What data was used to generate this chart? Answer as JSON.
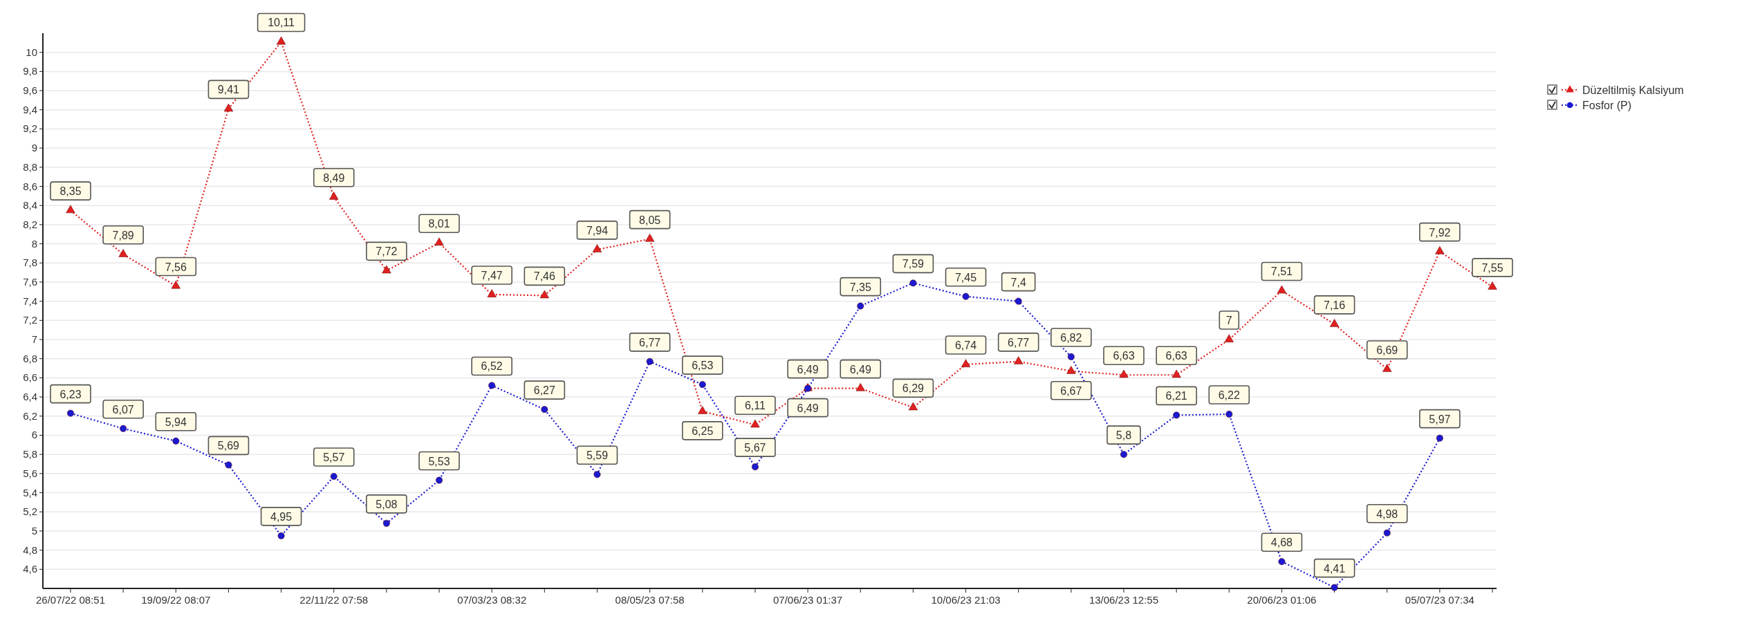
{
  "chart_data": {
    "type": "line",
    "categories": [
      "26/07/22 08:51",
      null,
      "19/09/22 08:07",
      null,
      null,
      "22/11/22 07:58",
      null,
      null,
      "07/03/23 08:32",
      null,
      null,
      "08/05/23 07:58",
      null,
      null,
      "07/06/23 01:37",
      null,
      null,
      "10/06/23 21:03",
      null,
      null,
      "13/06/23 12:55",
      null,
      null,
      "20/06/23 01:06",
      null,
      null,
      "05/07/23 07:34",
      null
    ],
    "series": [
      {
        "name": "Düzeltilmiş Kalsiyum",
        "color": "#e02020",
        "marker": "triangle",
        "values": [
          8.35,
          7.89,
          7.56,
          9.41,
          10.11,
          8.49,
          7.72,
          8.01,
          7.47,
          7.46,
          7.94,
          8.05,
          6.25,
          6.11,
          6.49,
          6.49,
          6.29,
          6.74,
          6.77,
          6.67,
          6.63,
          6.63,
          7,
          7.51,
          7.16,
          6.69,
          7.92,
          7.55
        ],
        "value_labels": [
          "8,35",
          "7,89",
          "7,56",
          "9,41",
          "10,11",
          "8,49",
          "7,72",
          "8,01",
          "7,47",
          "7,46",
          "7,94",
          "8,05",
          "6,25",
          "6,11",
          "6,49",
          "6,49",
          "6,29",
          "6,74",
          "6,77",
          "6,67",
          "6,63",
          "6,63",
          "7",
          "7,51",
          "7,16",
          "6,69",
          "7,92",
          "7,55"
        ]
      },
      {
        "name": "Fosfor (P)",
        "color": "#1a1ad0",
        "marker": "circle",
        "values": [
          6.23,
          6.07,
          5.94,
          5.69,
          4.95,
          5.57,
          5.08,
          5.53,
          6.52,
          6.27,
          5.59,
          6.77,
          6.53,
          5.67,
          6.49,
          7.35,
          7.59,
          7.45,
          7.4,
          6.82,
          5.8,
          6.21,
          6.22,
          4.68,
          4.41,
          4.98,
          5.97,
          null
        ],
        "value_labels": [
          "6,23",
          "6,07",
          "5,94",
          "5,69",
          "4,95",
          "5,57",
          "5,08",
          "5,53",
          "6,52",
          "6,27",
          "5,59",
          "6,77",
          "6,53",
          "5,67",
          "6,49",
          "7,35",
          "7,59",
          "7,45",
          "7,4",
          "6,82",
          "5,8",
          "6,21",
          "6,22",
          "4,68",
          "4,41",
          "4,98",
          "5,97",
          null
        ]
      }
    ],
    "ylim": [
      4.4,
      10.2
    ],
    "yticks": [
      {
        "value": 4.6,
        "label": "4,6"
      },
      {
        "value": 4.8,
        "label": "4,8"
      },
      5,
      {
        "value": 5.2,
        "label": "5,2"
      },
      {
        "value": 5.4,
        "label": "5,4"
      },
      {
        "value": 5.6,
        "label": "5,6"
      },
      {
        "value": 5.8,
        "label": "5,8"
      },
      6,
      {
        "value": 6.2,
        "label": "6,2"
      },
      {
        "value": 6.4,
        "label": "6,4"
      },
      {
        "value": 6.6,
        "label": "6,6"
      },
      {
        "value": 6.8,
        "label": "6,8"
      },
      7,
      {
        "value": 7.2,
        "label": "7,2"
      },
      {
        "value": 7.4,
        "label": "7,4"
      },
      {
        "value": 7.6,
        "label": "7,6"
      },
      {
        "value": 7.8,
        "label": "7,8"
      },
      8,
      {
        "value": 8.2,
        "label": "8,2"
      },
      {
        "value": 8.4,
        "label": "8,4"
      },
      {
        "value": 8.6,
        "label": "8,6"
      },
      {
        "value": 8.8,
        "label": "8,8"
      },
      9,
      {
        "value": 9.2,
        "label": "9,2"
      },
      {
        "value": 9.4,
        "label": "9,4"
      },
      {
        "value": 9.6,
        "label": "9,6"
      },
      {
        "value": 9.8,
        "label": "9,8"
      },
      10
    ],
    "grid": "y",
    "legend": "top right",
    "line_style": "dotted"
  }
}
